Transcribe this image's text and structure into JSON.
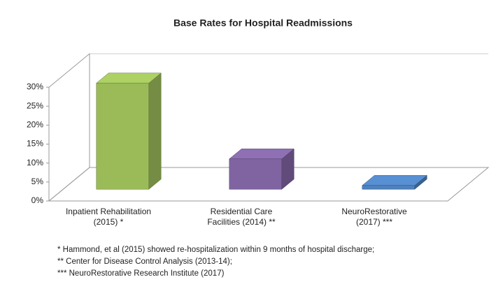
{
  "chart_data": {
    "type": "bar3d",
    "title": "Base Rates for Hospital Readmissions",
    "categories": [
      "Inpatient Rehabilitation\n(2015) *",
      "Residential Care\nFacilities (2014) **",
      "NeuroRestorative\n(2017) ***"
    ],
    "values": [
      28,
      8,
      1
    ],
    "colors": [
      "#9bbb59",
      "#8064a2",
      "#4f81bd"
    ],
    "ylim": [
      0,
      30
    ],
    "yticks": [
      {
        "value": 0,
        "label": "0%"
      },
      {
        "value": 5,
        "label": "5%"
      },
      {
        "value": 10,
        "label": "10%"
      },
      {
        "value": 15,
        "label": "15%"
      },
      {
        "value": 20,
        "label": "20%"
      },
      {
        "value": 25,
        "label": "25%"
      },
      {
        "value": 30,
        "label": "30%"
      }
    ],
    "notes": [
      "* Hammond, et al (2015) showed re-hospitalization within 9 months of hospital discharge;",
      "** Center for Disease Control Analysis (2013-14);",
      "*** NeuroRestorative Research Institute (2017)"
    ]
  }
}
